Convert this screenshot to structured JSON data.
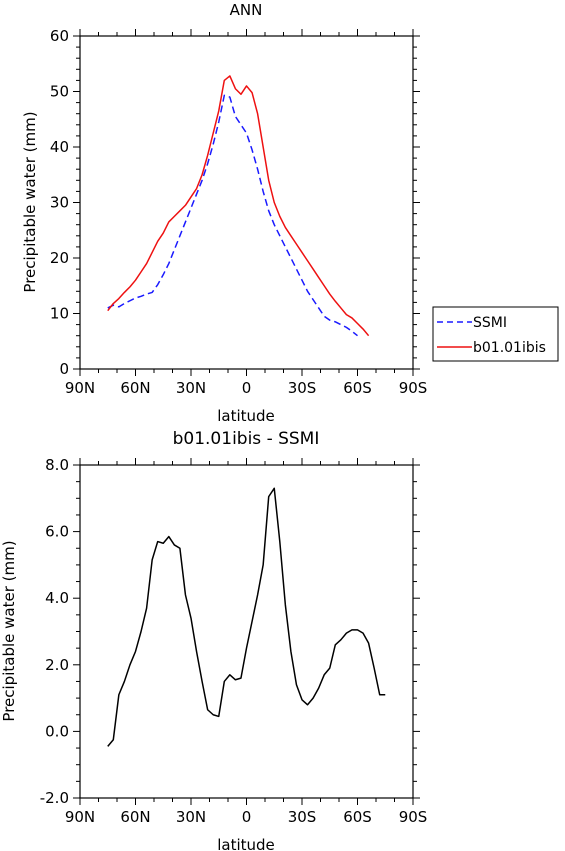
{
  "chart_data": [
    {
      "type": "line",
      "title": "ANN",
      "xlabel": "latitude",
      "ylabel": "Precipitable water (mm)",
      "xlim": [
        90,
        -90
      ],
      "ylim": [
        0,
        60
      ],
      "x_ticks": [
        90,
        60,
        30,
        0,
        -30,
        -60,
        -90
      ],
      "x_tick_labels": [
        "90N",
        "60N",
        "30N",
        "0",
        "30S",
        "60S",
        "90S"
      ],
      "y_ticks": [
        0,
        10,
        20,
        30,
        40,
        50,
        60
      ],
      "y_tick_labels": [
        "0",
        "10",
        "20",
        "30",
        "40",
        "50",
        "60"
      ],
      "grid": false,
      "legend": "right",
      "series": [
        {
          "name": "SSMI",
          "color": "#1a1aff",
          "dash": "dashed",
          "x": [
            75,
            72,
            69,
            66,
            63,
            60,
            57,
            54,
            51,
            48,
            45,
            42,
            39,
            36,
            33,
            30,
            27,
            24,
            21,
            18,
            15,
            12,
            9,
            6,
            3,
            0,
            -3,
            -6,
            -9,
            -12,
            -15,
            -18,
            -21,
            -24,
            -27,
            -30,
            -33,
            -36,
            -39,
            -42,
            -45,
            -48,
            -51,
            -54,
            -57,
            -60,
            -63,
            -66,
            -69,
            -72,
            -75
          ],
          "y": [
            11.0,
            11.5,
            11.2,
            11.8,
            12.3,
            12.8,
            13.1,
            13.5,
            13.8,
            15.2,
            17.0,
            19.0,
            21.5,
            24.0,
            26.5,
            29.0,
            31.5,
            34.0,
            37.0,
            40.5,
            44.5,
            49.3,
            49.0,
            45.5,
            44.0,
            42.5,
            39.5,
            36.0,
            32.0,
            28.5,
            26.0,
            24.0,
            22.0,
            20.0,
            18.0,
            16.0,
            14.0,
            12.5,
            11.0,
            9.5,
            8.8,
            8.5,
            8.0,
            7.5,
            6.8,
            6.0,
            null,
            null,
            null,
            null,
            null
          ]
        },
        {
          "name": "b01.01ibis",
          "color": "#ee1111",
          "dash": "solid",
          "x": [
            75,
            72,
            69,
            66,
            63,
            60,
            57,
            54,
            51,
            48,
            45,
            42,
            39,
            36,
            33,
            30,
            27,
            24,
            21,
            18,
            15,
            12,
            9,
            6,
            3,
            0,
            -3,
            -6,
            -9,
            -12,
            -15,
            -18,
            -21,
            -24,
            -27,
            -30,
            -33,
            -36,
            -39,
            -42,
            -45,
            -48,
            -51,
            -54,
            -57,
            -60,
            -63,
            -66,
            -69,
            -72,
            -75
          ],
          "y": [
            10.5,
            11.8,
            12.7,
            13.8,
            14.8,
            16.0,
            17.5,
            19.0,
            21.0,
            23.0,
            24.5,
            26.5,
            27.5,
            28.5,
            29.5,
            31.0,
            32.5,
            35.0,
            38.5,
            42.5,
            46.5,
            52.0,
            52.8,
            50.5,
            49.5,
            51.0,
            49.8,
            46.0,
            40.0,
            34.0,
            30.0,
            27.5,
            25.5,
            24.0,
            22.5,
            21.0,
            19.5,
            18.0,
            16.5,
            15.0,
            13.5,
            12.2,
            11.0,
            9.8,
            9.2,
            8.2,
            7.2,
            6.0,
            null,
            null,
            null
          ]
        }
      ]
    },
    {
      "type": "line",
      "title": "b01.01ibis - SSMI",
      "xlabel": "latitude",
      "ylabel": "Precipitable water (mm)",
      "xlim": [
        90,
        -90
      ],
      "ylim": [
        -2.0,
        8.0
      ],
      "x_ticks": [
        90,
        60,
        30,
        0,
        -30,
        -60,
        -90
      ],
      "x_tick_labels": [
        "90N",
        "60N",
        "30N",
        "0",
        "30S",
        "60S",
        "90S"
      ],
      "y_ticks": [
        -2.0,
        0.0,
        2.0,
        4.0,
        6.0,
        8.0
      ],
      "y_tick_labels": [
        "-2.0",
        "0.0",
        "2.0",
        "4.0",
        "6.0",
        "8.0"
      ],
      "grid": false,
      "series": [
        {
          "color": "#000000",
          "dash": "solid",
          "x": [
            75,
            72,
            69,
            66,
            63,
            60,
            57,
            54,
            51,
            48,
            45,
            42,
            39,
            36,
            33,
            30,
            27,
            24,
            21,
            18,
            15,
            12,
            9,
            6,
            3,
            0,
            -3,
            -6,
            -9,
            -12,
            -15,
            -18,
            -21,
            -24,
            -27,
            -30,
            -33,
            -36,
            -39,
            -42,
            -45,
            -48,
            -51,
            -54,
            -57,
            -60,
            -63,
            -66,
            -69,
            -72,
            -75
          ],
          "y": [
            -0.45,
            -0.25,
            1.1,
            1.5,
            2.0,
            2.4,
            3.0,
            3.7,
            5.15,
            5.7,
            5.65,
            5.85,
            5.6,
            5.5,
            4.1,
            3.4,
            2.4,
            1.5,
            0.65,
            0.5,
            0.45,
            1.5,
            1.7,
            1.55,
            1.6,
            2.5,
            3.3,
            4.1,
            5.0,
            7.05,
            7.3,
            5.7,
            3.8,
            2.4,
            1.4,
            0.95,
            0.8,
            1.0,
            1.3,
            1.7,
            1.9,
            2.6,
            2.75,
            2.95,
            3.05,
            3.05,
            2.95,
            2.65,
            1.9,
            1.1,
            1.1
          ]
        }
      ]
    }
  ]
}
